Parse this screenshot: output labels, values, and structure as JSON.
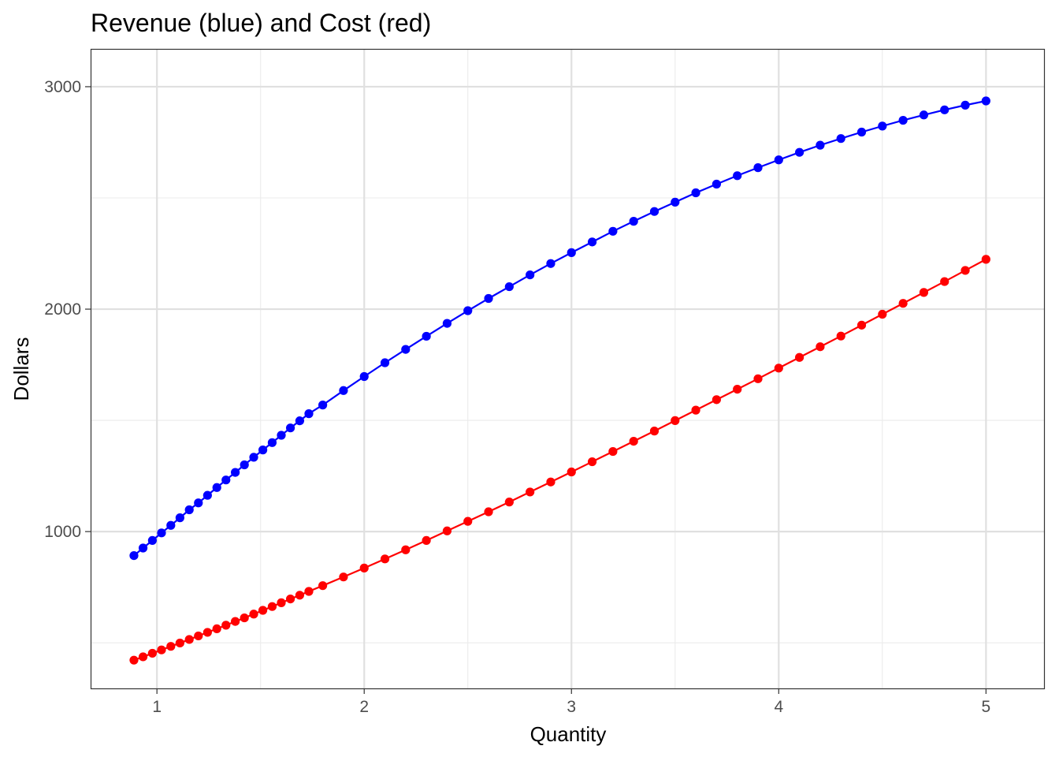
{
  "chart_data": {
    "type": "line",
    "title": "Revenue (blue) and Cost (red)",
    "xlabel": "Quantity",
    "ylabel": "Dollars",
    "xlim": [
      0.68,
      5.28
    ],
    "ylim": [
      295,
      3170
    ],
    "x_ticks": [
      1,
      2,
      3,
      4,
      5
    ],
    "x_tick_labels": [
      "1",
      "2",
      "3",
      "4",
      "5"
    ],
    "x_minor_ticks": [
      1.5,
      2.5,
      3.5,
      4.5
    ],
    "y_ticks": [
      1000,
      2000,
      3000
    ],
    "y_tick_labels": [
      "1000",
      "2000",
      "3000"
    ],
    "y_minor_ticks": [
      500,
      1500,
      2500
    ],
    "grid": true,
    "x": [
      0.889,
      0.933,
      0.978,
      1.022,
      1.067,
      1.111,
      1.156,
      1.2,
      1.244,
      1.289,
      1.333,
      1.378,
      1.422,
      1.467,
      1.511,
      1.556,
      1.6,
      1.644,
      1.689,
      1.733,
      1.8,
      1.9,
      2.0,
      2.1,
      2.2,
      2.3,
      2.4,
      2.5,
      2.6,
      2.7,
      2.8,
      2.9,
      3.0,
      3.1,
      3.2,
      3.3,
      3.4,
      3.5,
      3.6,
      3.7,
      3.8,
      3.9,
      4.0,
      4.1,
      4.2,
      4.3,
      4.4,
      4.5,
      4.6,
      4.7,
      4.8,
      4.9,
      5.0
    ],
    "series": [
      {
        "name": "Revenue",
        "color": "#0000ff",
        "values": [
          892,
          926,
          960,
          994,
          1028,
          1062,
          1098,
          1129,
          1163,
          1198,
          1232,
          1266,
          1300,
          1334,
          1367,
          1400,
          1433,
          1466,
          1498,
          1530,
          1569,
          1634,
          1697,
          1759,
          1819,
          1878,
          1936,
          1993,
          2048,
          2101,
          2154,
          2205,
          2254,
          2302,
          2350,
          2395,
          2439,
          2481,
          2523,
          2562,
          2600,
          2636,
          2671,
          2705,
          2737,
          2767,
          2796,
          2823,
          2849,
          2873,
          2896,
          2917,
          2936
        ]
      },
      {
        "name": "Cost",
        "color": "#ff0000",
        "values": [
          422,
          437,
          453,
          468,
          484,
          499,
          515,
          531,
          547,
          563,
          579,
          596,
          612,
          629,
          646,
          663,
          680,
          697,
          714,
          731,
          757,
          796,
          836,
          877,
          918,
          960,
          1003,
          1046,
          1089,
          1133,
          1178,
          1223,
          1268,
          1314,
          1360,
          1406,
          1452,
          1499,
          1546,
          1593,
          1640,
          1687,
          1735,
          1783,
          1831,
          1879,
          1928,
          1977,
          2026,
          2075,
          2124,
          2174,
          2224
        ]
      }
    ],
    "legend": "none"
  }
}
